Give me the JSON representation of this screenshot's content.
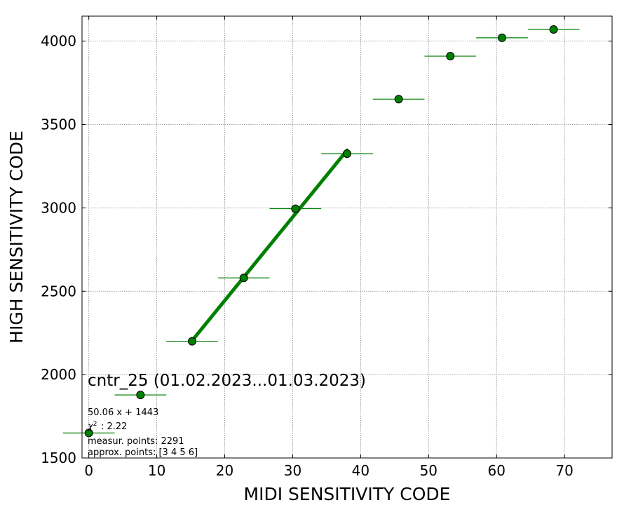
{
  "chart_data": {
    "type": "scatter",
    "title": "",
    "xlabel": "MIDI SENSITIVITY CODE",
    "ylabel": "HIGH SENSITIVITY CODE",
    "xlim": [
      -1,
      77
    ],
    "ylim": [
      1500,
      4150
    ],
    "xticks": [
      0,
      10,
      20,
      30,
      40,
      50,
      60,
      70
    ],
    "yticks": [
      1500,
      2000,
      2500,
      3000,
      3500,
      4000
    ],
    "grid": true,
    "series": [
      {
        "kind": "points_with_xerr",
        "color": "#008000",
        "points": [
          {
            "x": 0.0,
            "y": 1650,
            "xerr": 3.8
          },
          {
            "x": 7.6,
            "y": 1878,
            "xerr": 3.8
          },
          {
            "x": 15.2,
            "y": 2200,
            "xerr": 3.8
          },
          {
            "x": 22.8,
            "y": 2580,
            "xerr": 3.8
          },
          {
            "x": 30.4,
            "y": 2995,
            "xerr": 3.8
          },
          {
            "x": 38.0,
            "y": 3325,
            "xerr": 3.8
          },
          {
            "x": 45.6,
            "y": 3652,
            "xerr": 3.8
          },
          {
            "x": 53.2,
            "y": 3910,
            "xerr": 3.8
          },
          {
            "x": 60.8,
            "y": 4020,
            "xerr": 3.8
          },
          {
            "x": 68.4,
            "y": 4070,
            "xerr": 3.8
          }
        ]
      },
      {
        "kind": "fit_line",
        "color": "#008000",
        "slope": 50.06,
        "intercept": 1443,
        "x_range": [
          15.2,
          38.0
        ]
      }
    ],
    "annotations": {
      "label": "cntr_25 (01.02.2023...01.03.2023)",
      "fit_formula": "50.06 x + 1443",
      "chi2_text": ": 2.22",
      "measur_points": "measur. points: 2291",
      "approx_points": "approx. points: [3 4 5 6]"
    }
  }
}
